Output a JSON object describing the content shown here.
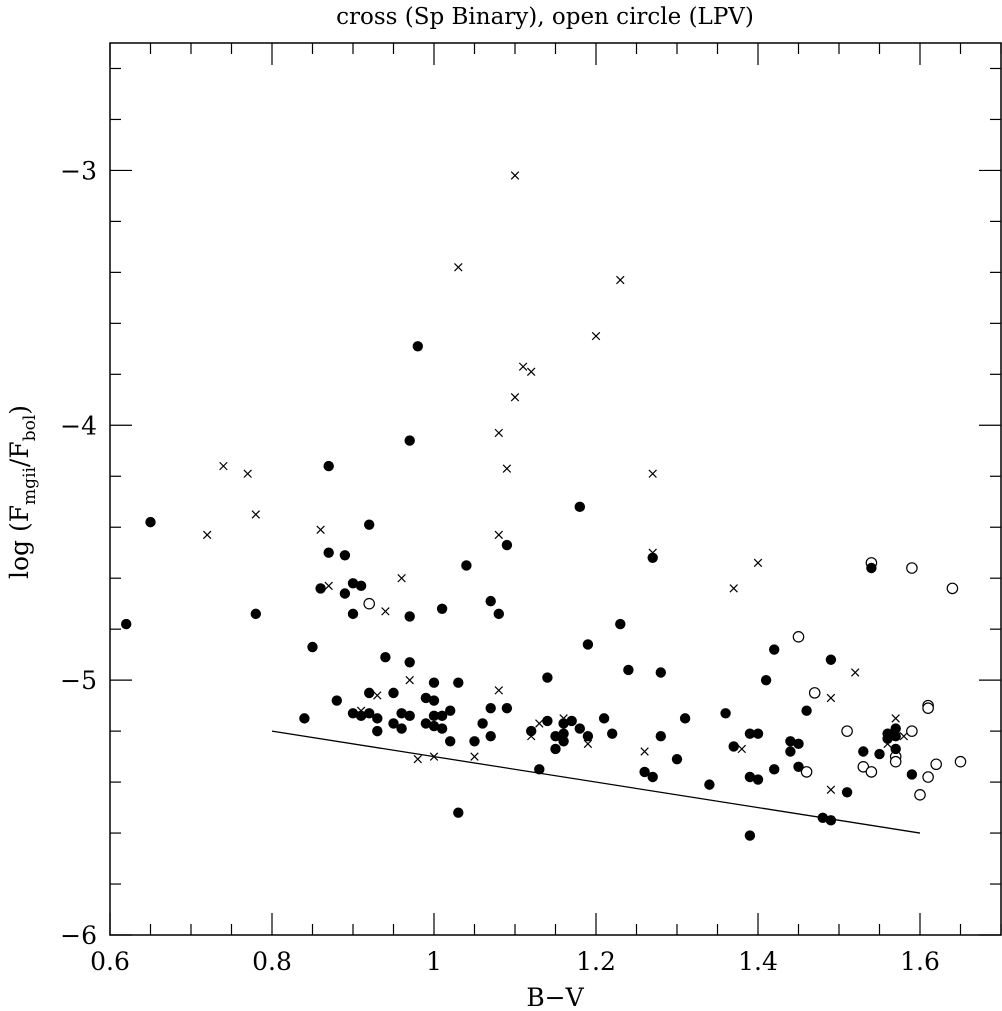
{
  "chart_data": {
    "type": "scatter",
    "title": "cross (Sp Binary), open circle (LPV)",
    "xlabel": "B−V",
    "ylabel": {
      "prefix": "log (F",
      "sub1": "mgii",
      "mid": "/F",
      "sub2": "bol",
      "suffix": ")"
    },
    "xlim": [
      0.6,
      1.7
    ],
    "ylim": [
      -6.0,
      -2.5
    ],
    "x_ticks": [
      {
        "value": 0.6,
        "label": "0.6"
      },
      {
        "value": 0.8,
        "label": "0.8"
      },
      {
        "value": 1.0,
        "label": "1"
      },
      {
        "value": 1.2,
        "label": "1.2"
      },
      {
        "value": 1.4,
        "label": "1.4"
      },
      {
        "value": 1.6,
        "label": "1.6"
      }
    ],
    "y_ticks": [
      {
        "value": -3,
        "label": "−3"
      },
      {
        "value": -4,
        "label": "−4"
      },
      {
        "value": -5,
        "label": "−5"
      },
      {
        "value": -6,
        "label": "−6"
      }
    ],
    "x_minor_step": 0.05,
    "y_minor_step": 0.2,
    "grid": false,
    "series": [
      {
        "name": "cross (Sp Binary)",
        "marker": "cross",
        "points": [
          [
            1.1,
            -3.02
          ],
          [
            1.03,
            -3.38
          ],
          [
            1.23,
            -3.43
          ],
          [
            1.2,
            -3.65
          ],
          [
            1.11,
            -3.77
          ],
          [
            1.12,
            -3.79
          ],
          [
            1.1,
            -3.89
          ],
          [
            1.08,
            -4.03
          ],
          [
            0.74,
            -4.16
          ],
          [
            1.09,
            -4.17
          ],
          [
            0.77,
            -4.19
          ],
          [
            1.27,
            -4.19
          ],
          [
            0.78,
            -4.35
          ],
          [
            0.72,
            -4.43
          ],
          [
            0.86,
            -4.41
          ],
          [
            1.08,
            -4.43
          ],
          [
            1.27,
            -4.5
          ],
          [
            1.4,
            -4.54
          ],
          [
            0.96,
            -4.6
          ],
          [
            0.87,
            -4.63
          ],
          [
            1.37,
            -4.64
          ],
          [
            0.94,
            -4.73
          ],
          [
            0.97,
            -5.0
          ],
          [
            1.08,
            -5.04
          ],
          [
            1.52,
            -4.97
          ],
          [
            0.93,
            -5.06
          ],
          [
            0.91,
            -5.12
          ],
          [
            1.13,
            -5.17
          ],
          [
            1.16,
            -5.15
          ],
          [
            1.12,
            -5.22
          ],
          [
            1.19,
            -5.25
          ],
          [
            1.26,
            -5.28
          ],
          [
            1.38,
            -5.27
          ],
          [
            1.05,
            -5.3
          ],
          [
            1.0,
            -5.3
          ],
          [
            0.98,
            -5.31
          ],
          [
            1.49,
            -5.07
          ],
          [
            1.57,
            -5.15
          ],
          [
            1.58,
            -5.22
          ],
          [
            1.56,
            -5.25
          ],
          [
            1.49,
            -5.43
          ]
        ]
      },
      {
        "name": "open circle (LPV)",
        "marker": "open-circle",
        "points": [
          [
            1.54,
            -4.54
          ],
          [
            1.59,
            -4.56
          ],
          [
            1.64,
            -4.64
          ],
          [
            0.92,
            -4.7
          ],
          [
            1.45,
            -4.83
          ],
          [
            1.47,
            -5.05
          ],
          [
            1.61,
            -5.1
          ],
          [
            1.61,
            -5.11
          ],
          [
            1.51,
            -5.2
          ],
          [
            1.59,
            -5.2
          ],
          [
            1.57,
            -5.3
          ],
          [
            1.57,
            -5.32
          ],
          [
            1.53,
            -5.34
          ],
          [
            1.62,
            -5.33
          ],
          [
            1.65,
            -5.32
          ],
          [
            1.54,
            -5.36
          ],
          [
            1.46,
            -5.36
          ],
          [
            1.61,
            -5.38
          ],
          [
            1.6,
            -5.45
          ]
        ]
      },
      {
        "name": "filled circle",
        "marker": "filled-circle",
        "points": [
          [
            0.62,
            -4.78
          ],
          [
            0.65,
            -4.38
          ],
          [
            0.78,
            -4.74
          ],
          [
            0.84,
            -5.15
          ],
          [
            0.85,
            -4.87
          ],
          [
            0.86,
            -4.64
          ],
          [
            0.87,
            -4.16
          ],
          [
            0.87,
            -4.5
          ],
          [
            0.88,
            -5.08
          ],
          [
            0.89,
            -4.51
          ],
          [
            0.89,
            -4.66
          ],
          [
            0.9,
            -4.62
          ],
          [
            0.9,
            -4.74
          ],
          [
            0.9,
            -5.13
          ],
          [
            0.91,
            -4.63
          ],
          [
            0.91,
            -5.14
          ],
          [
            0.92,
            -4.39
          ],
          [
            0.92,
            -5.05
          ],
          [
            0.92,
            -5.13
          ],
          [
            0.93,
            -5.15
          ],
          [
            0.93,
            -5.2
          ],
          [
            0.94,
            -4.91
          ],
          [
            0.95,
            -5.05
          ],
          [
            0.95,
            -5.17
          ],
          [
            0.96,
            -5.13
          ],
          [
            0.96,
            -5.19
          ],
          [
            0.97,
            -4.06
          ],
          [
            0.97,
            -4.75
          ],
          [
            0.97,
            -4.93
          ],
          [
            0.97,
            -5.14
          ],
          [
            0.98,
            -3.69
          ],
          [
            0.99,
            -5.07
          ],
          [
            0.99,
            -5.17
          ],
          [
            1.0,
            -5.01
          ],
          [
            1.0,
            -5.08
          ],
          [
            1.0,
            -5.14
          ],
          [
            1.0,
            -5.18
          ],
          [
            1.01,
            -4.72
          ],
          [
            1.01,
            -5.14
          ],
          [
            1.01,
            -5.19
          ],
          [
            1.02,
            -5.12
          ],
          [
            1.02,
            -5.24
          ],
          [
            1.03,
            -5.01
          ],
          [
            1.03,
            -5.52
          ],
          [
            1.04,
            -4.55
          ],
          [
            1.05,
            -5.24
          ],
          [
            1.06,
            -5.17
          ],
          [
            1.07,
            -4.69
          ],
          [
            1.07,
            -5.11
          ],
          [
            1.07,
            -5.22
          ],
          [
            1.08,
            -4.74
          ],
          [
            1.09,
            -4.47
          ],
          [
            1.09,
            -5.11
          ],
          [
            1.12,
            -5.2
          ],
          [
            1.13,
            -5.35
          ],
          [
            1.14,
            -4.99
          ],
          [
            1.14,
            -5.16
          ],
          [
            1.15,
            -5.22
          ],
          [
            1.15,
            -5.27
          ],
          [
            1.16,
            -5.17
          ],
          [
            1.16,
            -5.21
          ],
          [
            1.16,
            -5.24
          ],
          [
            1.17,
            -5.16
          ],
          [
            1.18,
            -4.32
          ],
          [
            1.18,
            -5.19
          ],
          [
            1.19,
            -4.86
          ],
          [
            1.19,
            -5.22
          ],
          [
            1.21,
            -5.15
          ],
          [
            1.22,
            -5.21
          ],
          [
            1.23,
            -4.78
          ],
          [
            1.24,
            -4.96
          ],
          [
            1.26,
            -5.36
          ],
          [
            1.27,
            -4.52
          ],
          [
            1.27,
            -5.38
          ],
          [
            1.28,
            -4.97
          ],
          [
            1.28,
            -5.22
          ],
          [
            1.3,
            -5.31
          ],
          [
            1.31,
            -5.15
          ],
          [
            1.34,
            -5.41
          ],
          [
            1.36,
            -5.13
          ],
          [
            1.37,
            -5.26
          ],
          [
            1.39,
            -5.21
          ],
          [
            1.39,
            -5.38
          ],
          [
            1.39,
            -5.61
          ],
          [
            1.4,
            -5.21
          ],
          [
            1.4,
            -5.39
          ],
          [
            1.41,
            -5.0
          ],
          [
            1.42,
            -4.88
          ],
          [
            1.42,
            -5.35
          ],
          [
            1.44,
            -5.24
          ],
          [
            1.44,
            -5.28
          ],
          [
            1.45,
            -5.25
          ],
          [
            1.45,
            -5.34
          ],
          [
            1.46,
            -5.12
          ],
          [
            1.48,
            -5.54
          ],
          [
            1.49,
            -4.92
          ],
          [
            1.49,
            -5.55
          ],
          [
            1.51,
            -5.44
          ],
          [
            1.53,
            -5.28
          ],
          [
            1.54,
            -4.56
          ],
          [
            1.55,
            -5.29
          ],
          [
            1.56,
            -5.21
          ],
          [
            1.56,
            -5.23
          ],
          [
            1.57,
            -5.19
          ],
          [
            1.57,
            -5.22
          ],
          [
            1.57,
            -5.27
          ],
          [
            1.59,
            -5.37
          ]
        ]
      }
    ],
    "reference_line": {
      "x": [
        0.8,
        1.6
      ],
      "y": [
        -5.2,
        -5.6
      ]
    }
  }
}
